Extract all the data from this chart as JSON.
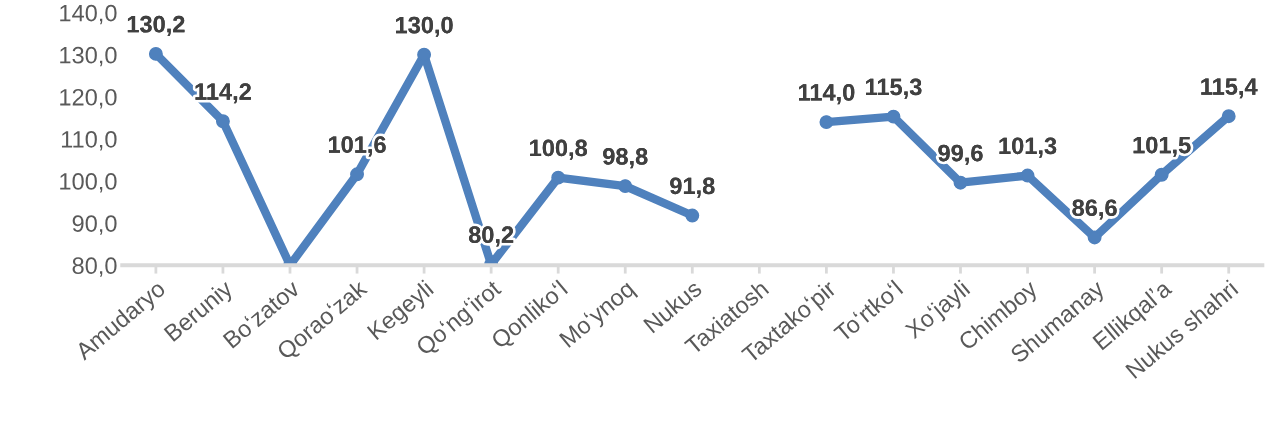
{
  "chart_data": {
    "type": "line",
    "categories": [
      "Amudaryo",
      "Beruniy",
      "Boʻzatov",
      "Qoraoʻzak",
      "Kegeyli",
      "Qoʻngʻirot",
      "Qonlikoʻl",
      "Moʻynoq",
      "Nukus",
      "Taxiatosh",
      "Taxtakoʻpir",
      "Toʻrtkoʻl",
      "Xoʻjayli",
      "Chimboy",
      "Shumanay",
      "Ellikqalʼa",
      "Nukus shahri"
    ],
    "series": [
      {
        "color": "#4f81bd",
        "values": [
          130.2,
          114.2,
          80.0,
          101.6,
          130.0,
          80.2,
          100.8,
          98.8,
          91.8,
          null,
          114.0,
          115.3,
          99.6,
          101.3,
          86.6,
          101.5,
          115.4
        ],
        "value_labels": [
          "130,2",
          "114,2",
          null,
          "101,6",
          "130,0",
          "80,2",
          "100,8",
          "98,8",
          "91,8",
          null,
          "114,0",
          "115,3",
          "99,6",
          "101,3",
          "86,6",
          "101,5",
          "115,4"
        ]
      }
    ],
    "ylim": [
      80,
      140
    ],
    "yticks": [
      {
        "value": 80,
        "label": "80,0"
      },
      {
        "value": 90,
        "label": "90,0"
      },
      {
        "value": 100,
        "label": "100,0"
      },
      {
        "value": 110,
        "label": "110,0"
      },
      {
        "value": 120,
        "label": "120,0"
      },
      {
        "value": 130,
        "label": "130,0"
      },
      {
        "value": 140,
        "label": "140,0"
      }
    ],
    "grid": false,
    "legend": false,
    "marker": "circle",
    "line_style": "solid"
  }
}
